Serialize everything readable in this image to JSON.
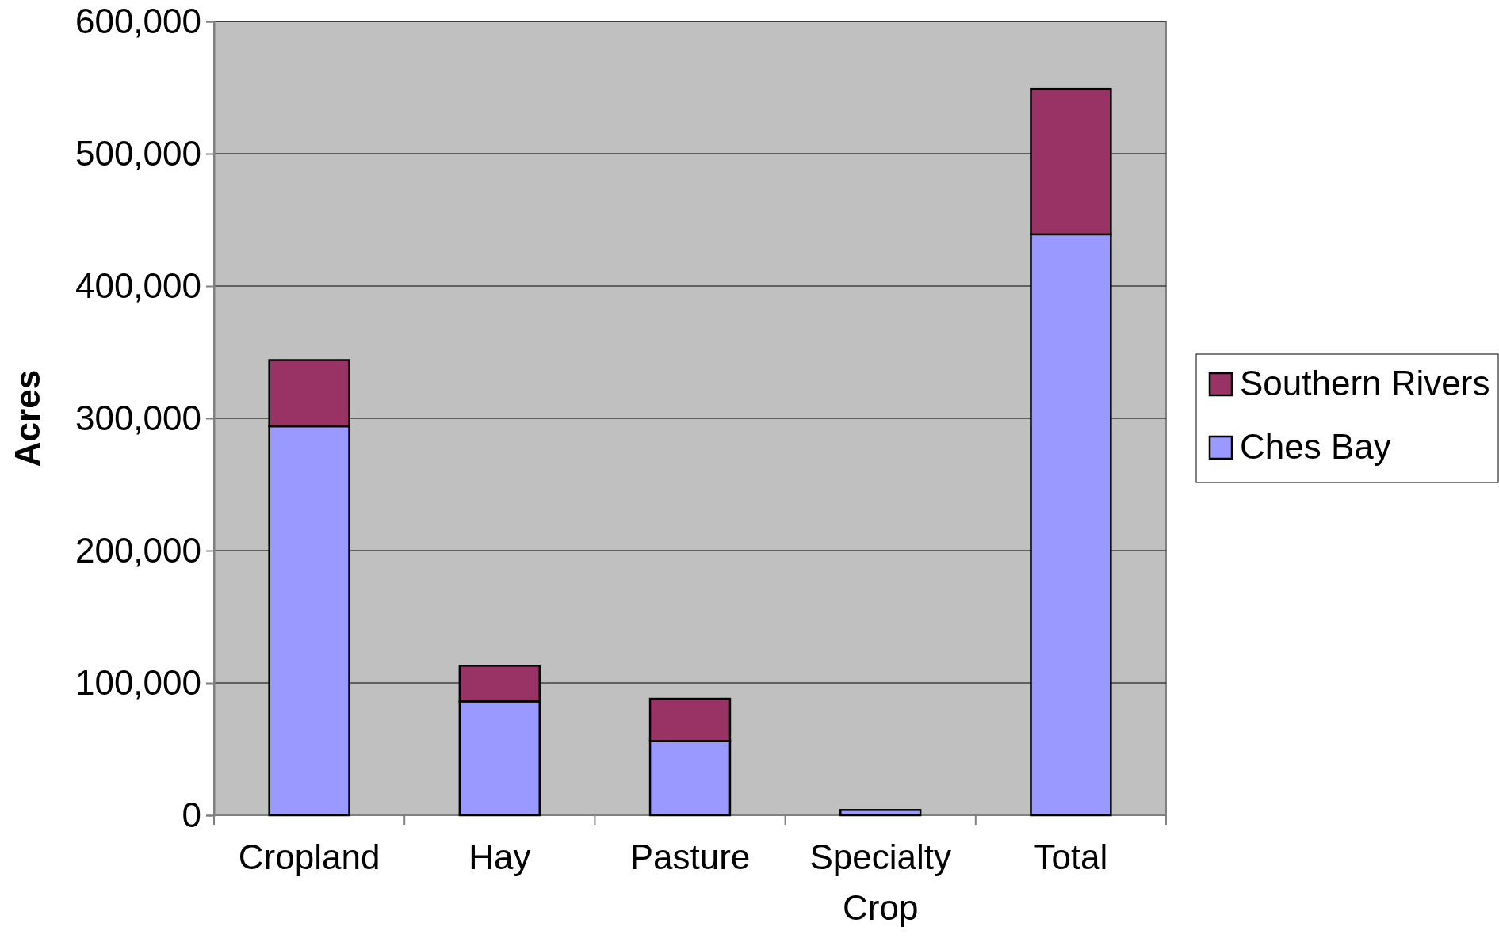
{
  "chart_data": {
    "type": "bar",
    "stacked": true,
    "ylabel": "Acres",
    "categories": [
      "Cropland",
      "Hay",
      "Pasture",
      "Specialty Crop",
      "Total"
    ],
    "series": [
      {
        "name": "Ches Bay",
        "color": "#9999ff",
        "values": [
          294000,
          86000,
          56000,
          4000,
          439000
        ]
      },
      {
        "name": "Southern Rivers",
        "color": "#993366",
        "values": [
          50000,
          27000,
          32000,
          0,
          110000
        ]
      }
    ],
    "ylim": [
      0,
      600000
    ],
    "yticks": [
      {
        "value": 0,
        "label": "0"
      },
      {
        "value": 100000,
        "label": "100,000"
      },
      {
        "value": 200000,
        "label": "200,000"
      },
      {
        "value": 300000,
        "label": "300,000"
      },
      {
        "value": 400000,
        "label": "400,000"
      },
      {
        "value": 500000,
        "label": "500,000"
      },
      {
        "value": 600000,
        "label": "600,000"
      }
    ],
    "grid": "y",
    "legend": "right"
  }
}
